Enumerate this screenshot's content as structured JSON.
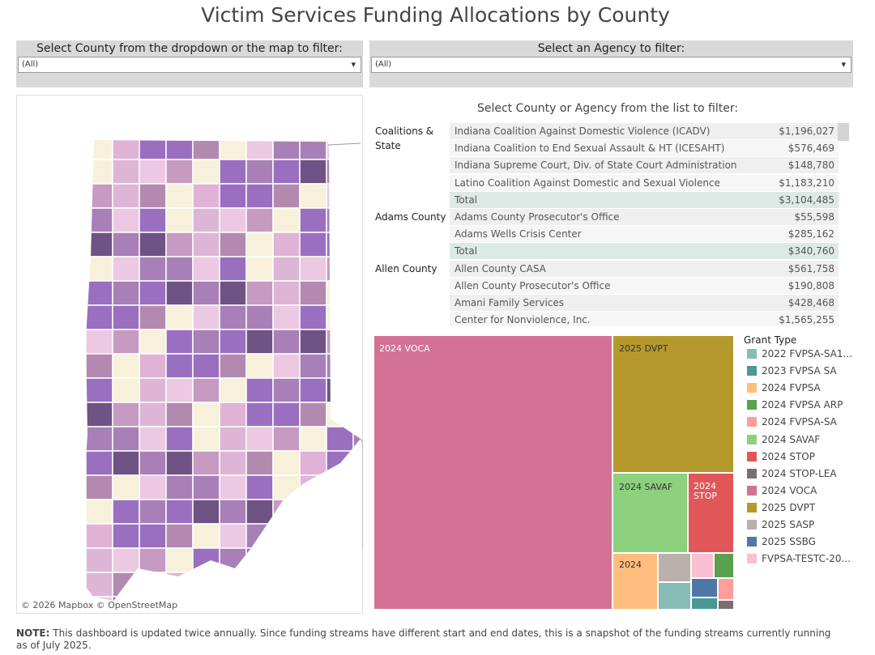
{
  "title": "Victim Services Funding Allocations by County",
  "filters": [
    {
      "label": "Select County from the dropdown or the map to filter:",
      "value": "(All)"
    },
    {
      "label": "Select an Agency to filter:",
      "value": "(All)"
    }
  ],
  "map": {
    "attribution": "© 2026 Mapbox © OpenStreetMap"
  },
  "list": {
    "heading": "Select County or Agency from the list to filter:",
    "groups": [
      {
        "name": "Coalitions & State",
        "rows": [
          [
            "Indiana Coalition Against Domestic Violence (ICADV)",
            "$1,196,027"
          ],
          [
            "Indiana Coalition to End Sexual Assault & HT (ICESAHT)",
            "$576,469"
          ],
          [
            "Indiana Supreme Court, Div. of State Court Administration",
            "$148,780"
          ],
          [
            "Latino Coalition Against Domestic and Sexual Violence",
            "$1,183,210"
          ],
          [
            "Total",
            "$3,104,485"
          ]
        ]
      },
      {
        "name": "Adams County",
        "rows": [
          [
            "Adams County Prosecutor's Office",
            "$55,598"
          ],
          [
            "Adams Wells Crisis Center",
            "$285,162"
          ],
          [
            "Total",
            "$340,760"
          ]
        ]
      },
      {
        "name": "Allen County",
        "rows": [
          [
            "Allen County CASA",
            "$561,758"
          ],
          [
            "Allen County Prosecutor's Office",
            "$190,808"
          ],
          [
            "Amani Family Services",
            "$428,468"
          ],
          [
            "Center for Nonviolence, Inc.",
            "$1,565,255"
          ]
        ]
      }
    ]
  },
  "treemap": {
    "labels": [
      "2024 VOCA",
      "2025 DVPT",
      "2024 SAVAF",
      "2024 STOP",
      "2024"
    ]
  },
  "legend": {
    "title": "Grant Type",
    "items": [
      {
        "name": "2022 FVPSA-SA1...",
        "color": "#86bcb6"
      },
      {
        "name": "2023 FVPSA SA",
        "color": "#499894"
      },
      {
        "name": "2024 FVPSA",
        "color": "#ffbe7d"
      },
      {
        "name": "2024 FVPSA ARP",
        "color": "#59a14f"
      },
      {
        "name": "2024 FVPSA-SA",
        "color": "#ff9d9a"
      },
      {
        "name": "2024 SAVAF",
        "color": "#8cd17d"
      },
      {
        "name": "2024 STOP",
        "color": "#e15759"
      },
      {
        "name": "2024 STOP-LEA",
        "color": "#79706e"
      },
      {
        "name": "2024 VOCA",
        "color": "#d37295"
      },
      {
        "name": "2025 DVPT",
        "color": "#b6992d"
      },
      {
        "name": "2025 SASP",
        "color": "#bab0ac"
      },
      {
        "name": "2025 SSBG",
        "color": "#4e79a7"
      },
      {
        "name": "FVPSA-TESTC-20...",
        "color": "#fabfd2"
      }
    ]
  },
  "note": {
    "label": "NOTE:",
    "text": "This dashboard is updated twice annually. Since funding streams have different start and end dates, this is a snapshot of the funding streams currently running as of July 2025."
  }
}
